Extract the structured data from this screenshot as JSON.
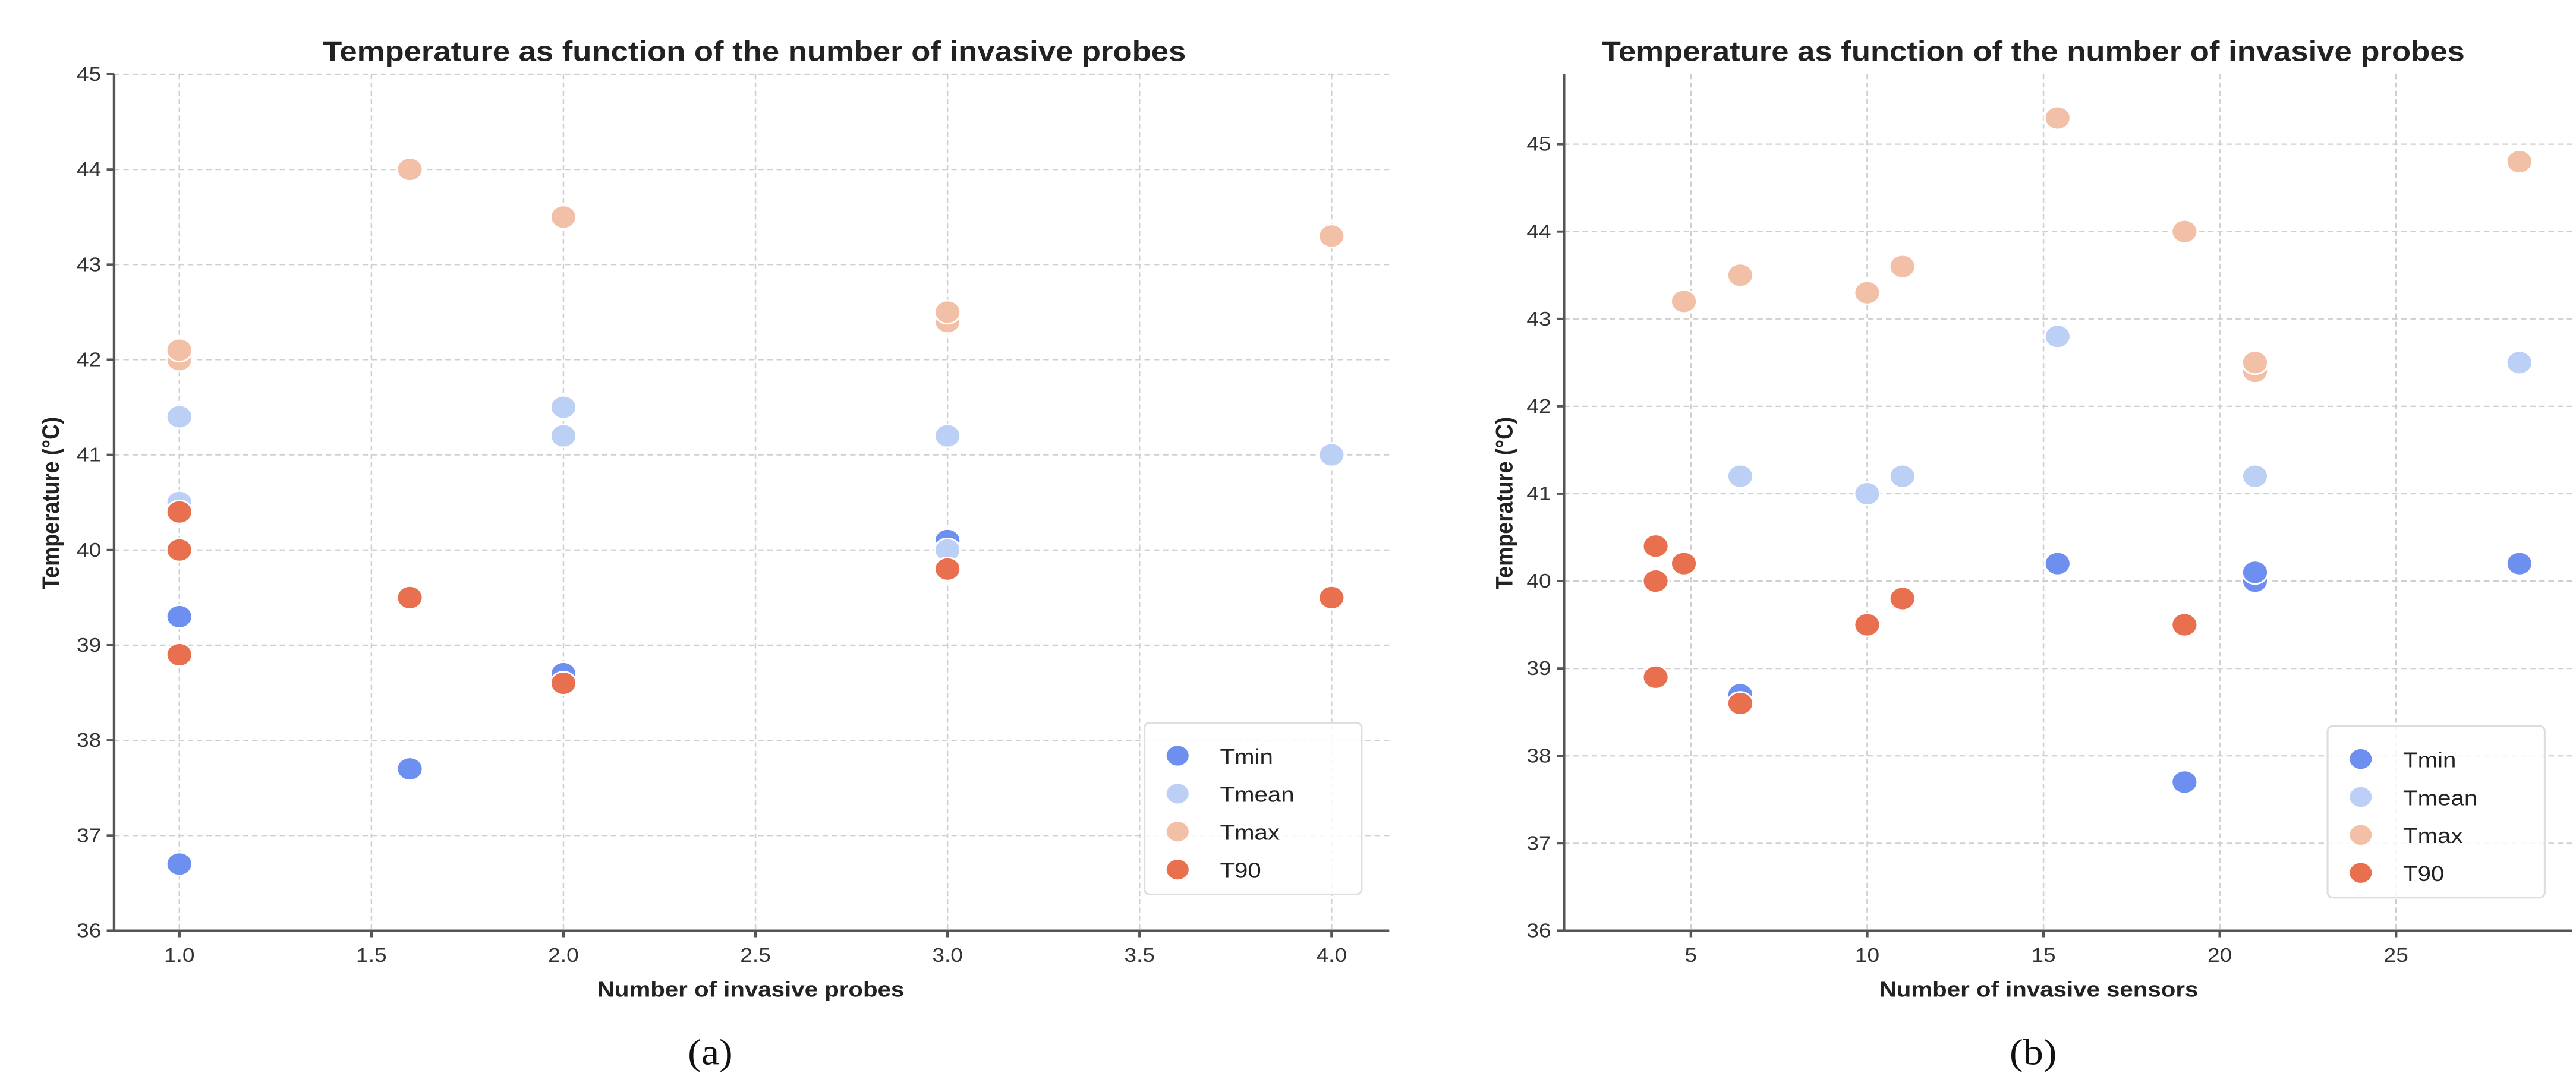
{
  "colors": {
    "Tmin": "#6d8ff0",
    "Tmean": "#bcd0f6",
    "Tmax": "#f2c0a6",
    "T90": "#e8704f"
  },
  "chart_data": [
    {
      "type": "scatter",
      "panel_label": "(a)",
      "title": "Temperature as function of the number of invasive probes",
      "xlabel": "Number of invasive probes",
      "ylabel": "Temperature (°C)",
      "xlim": [
        0.83,
        4.15
      ],
      "ylim": [
        36,
        45
      ],
      "xticks": [
        "1.0",
        "1.5",
        "2.0",
        "2.5",
        "3.0",
        "3.5",
        "4.0"
      ],
      "yticks": [
        "36",
        "37",
        "38",
        "39",
        "40",
        "41",
        "42",
        "43",
        "44",
        "45"
      ],
      "grid": true,
      "legend": "bottom-right",
      "series": [
        {
          "name": "Tmin",
          "points": [
            [
              1,
              39.3
            ],
            [
              1,
              36.7
            ],
            [
              1.6,
              37.7
            ],
            [
              2,
              38.7
            ],
            [
              3,
              40.0
            ],
            [
              3,
              40.1
            ],
            [
              4,
              39.5
            ]
          ]
        },
        {
          "name": "Tmean",
          "points": [
            [
              1,
              41.4
            ],
            [
              1,
              40.5
            ],
            [
              2,
              41.5
            ],
            [
              2,
              41.2
            ],
            [
              3,
              41.2
            ],
            [
              3,
              40.0
            ],
            [
              4,
              41.0
            ]
          ]
        },
        {
          "name": "Tmax",
          "points": [
            [
              1,
              42.0
            ],
            [
              1,
              42.1
            ],
            [
              1.6,
              44.0
            ],
            [
              2,
              43.5
            ],
            [
              3,
              42.4
            ],
            [
              3,
              42.5
            ],
            [
              4,
              43.3
            ]
          ]
        },
        {
          "name": "T90",
          "points": [
            [
              1,
              40.4
            ],
            [
              1,
              40.0
            ],
            [
              1,
              38.9
            ],
            [
              1.6,
              39.5
            ],
            [
              2,
              38.6
            ],
            [
              3,
              39.8
            ],
            [
              4,
              39.5
            ]
          ]
        }
      ]
    },
    {
      "type": "scatter",
      "panel_label": "(b)",
      "title": "Temperature as function of the number of invasive probes",
      "xlabel": "Number of invasive sensors",
      "ylabel": "Temperature (°C)",
      "xlim": [
        1.4,
        30
      ],
      "ylim": [
        36,
        45.8
      ],
      "xticks": [
        "5",
        "10",
        "15",
        "20",
        "25"
      ],
      "yticks": [
        "36",
        "37",
        "38",
        "39",
        "40",
        "41",
        "42",
        "43",
        "44",
        "45"
      ],
      "grid": true,
      "legend": "bottom-right",
      "series": [
        {
          "name": "Tmin",
          "points": [
            [
              6.4,
              38.7
            ],
            [
              15.4,
              40.2
            ],
            [
              19,
              37.7
            ],
            [
              21,
              40.0
            ],
            [
              21,
              40.1
            ],
            [
              28.5,
              40.2
            ]
          ]
        },
        {
          "name": "Tmean",
          "points": [
            [
              6.4,
              41.2
            ],
            [
              10,
              41.0
            ],
            [
              11,
              41.2
            ],
            [
              15.4,
              42.8
            ],
            [
              21,
              41.2
            ],
            [
              28.5,
              42.5
            ]
          ]
        },
        {
          "name": "Tmax",
          "points": [
            [
              4.8,
              43.2
            ],
            [
              6.4,
              43.5
            ],
            [
              10,
              43.3
            ],
            [
              11,
              43.6
            ],
            [
              15.4,
              45.3
            ],
            [
              19,
              44.0
            ],
            [
              21,
              42.4
            ],
            [
              21,
              42.5
            ],
            [
              28.5,
              44.8
            ]
          ]
        },
        {
          "name": "T90",
          "points": [
            [
              4,
              40.4
            ],
            [
              4,
              40.0
            ],
            [
              4,
              38.9
            ],
            [
              4.8,
              40.2
            ],
            [
              6.4,
              38.6
            ],
            [
              10,
              39.5
            ],
            [
              11,
              39.8
            ],
            [
              19,
              39.5
            ]
          ]
        }
      ]
    }
  ]
}
